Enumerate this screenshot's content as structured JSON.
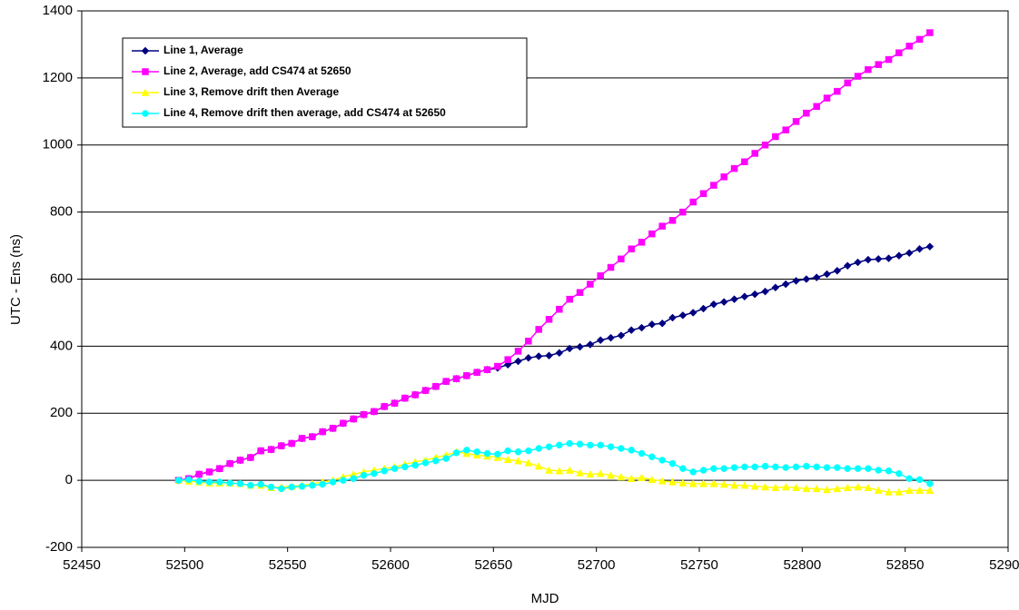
{
  "chart_data": {
    "type": "line",
    "x_label": "MJD",
    "y_label": "UTC - Ens (ns)",
    "xlim": [
      52450,
      52900
    ],
    "xticks": [
      52450,
      52500,
      52550,
      52600,
      52650,
      52700,
      52750,
      52800,
      52850,
      52900
    ],
    "ylim": [
      -200,
      1400
    ],
    "yticks": [
      -200,
      0,
      200,
      400,
      600,
      800,
      1000,
      1200,
      1400
    ],
    "grid": true,
    "legend": "upper left",
    "x": [
      52497,
      52502,
      52507,
      52512,
      52517,
      52522,
      52527,
      52532,
      52537,
      52542,
      52547,
      52552,
      52557,
      52562,
      52567,
      52572,
      52577,
      52582,
      52587,
      52592,
      52597,
      52602,
      52607,
      52612,
      52617,
      52622,
      52627,
      52632,
      52637,
      52642,
      52647,
      52652,
      52657,
      52662,
      52667,
      52672,
      52677,
      52682,
      52687,
      52692,
      52697,
      52702,
      52707,
      52712,
      52717,
      52722,
      52727,
      52732,
      52737,
      52742,
      52747,
      52752,
      52757,
      52762,
      52767,
      52772,
      52777,
      52782,
      52787,
      52792,
      52797,
      52802,
      52807,
      52812,
      52817,
      52822,
      52827,
      52832,
      52837,
      52842,
      52847,
      52852,
      52857,
      52862
    ],
    "series": [
      {
        "name": "Line 1, Average",
        "color": "#000080",
        "marker": "diamond",
        "values": [
          0,
          5,
          18,
          25,
          35,
          50,
          60,
          68,
          88,
          92,
          103,
          110,
          125,
          130,
          145,
          155,
          170,
          183,
          196,
          205,
          220,
          230,
          245,
          255,
          268,
          280,
          295,
          303,
          312,
          322,
          330,
          335,
          345,
          355,
          365,
          370,
          372,
          380,
          393,
          398,
          405,
          418,
          425,
          432,
          448,
          455,
          465,
          468,
          485,
          492,
          500,
          512,
          525,
          532,
          540,
          548,
          555,
          563,
          575,
          585,
          595,
          600,
          605,
          615,
          625,
          640,
          650,
          658,
          660,
          662,
          670,
          678,
          690,
          697
        ]
      },
      {
        "name": "Line 2, Average, add CS474 at 52650",
        "color": "#ff00ff",
        "marker": "square",
        "values": [
          0,
          5,
          18,
          25,
          35,
          50,
          60,
          68,
          88,
          92,
          103,
          110,
          125,
          130,
          145,
          155,
          170,
          183,
          196,
          205,
          220,
          230,
          245,
          255,
          268,
          280,
          295,
          303,
          312,
          322,
          330,
          340,
          360,
          385,
          415,
          450,
          480,
          510,
          540,
          560,
          585,
          610,
          635,
          660,
          690,
          710,
          735,
          758,
          775,
          800,
          830,
          855,
          880,
          905,
          930,
          950,
          975,
          1000,
          1025,
          1045,
          1070,
          1095,
          1115,
          1140,
          1160,
          1185,
          1205,
          1225,
          1240,
          1255,
          1275,
          1295,
          1315,
          1335
        ]
      },
      {
        "name": "Line 3, Remove drift then Average",
        "color": "#ffff00",
        "marker": "triangle",
        "values": [
          0,
          -3,
          -5,
          -8,
          -8,
          -8,
          -10,
          -15,
          -15,
          -22,
          -20,
          -18,
          -15,
          -10,
          -5,
          0,
          10,
          18,
          25,
          30,
          35,
          40,
          48,
          55,
          60,
          68,
          75,
          85,
          80,
          75,
          72,
          68,
          62,
          58,
          52,
          42,
          30,
          28,
          30,
          22,
          18,
          20,
          15,
          10,
          5,
          8,
          2,
          -2,
          -5,
          -8,
          -10,
          -10,
          -10,
          -12,
          -15,
          -15,
          -18,
          -20,
          -22,
          -20,
          -22,
          -25,
          -25,
          -28,
          -25,
          -22,
          -20,
          -22,
          -30,
          -35,
          -35,
          -30,
          -30,
          -30
        ]
      },
      {
        "name": "Line 4, Remove drift then average, add CS474 at 52650",
        "color": "#00ffff",
        "marker": "circle",
        "values": [
          0,
          2,
          -3,
          -5,
          -5,
          -8,
          -10,
          -15,
          -12,
          -20,
          -25,
          -20,
          -18,
          -15,
          -12,
          -5,
          0,
          5,
          15,
          20,
          28,
          35,
          40,
          45,
          52,
          58,
          65,
          82,
          90,
          85,
          80,
          78,
          88,
          85,
          88,
          95,
          100,
          105,
          110,
          108,
          105,
          105,
          100,
          95,
          90,
          80,
          70,
          60,
          50,
          35,
          25,
          30,
          35,
          35,
          38,
          40,
          40,
          42,
          40,
          38,
          40,
          42,
          40,
          38,
          38,
          35,
          35,
          35,
          30,
          28,
          20,
          5,
          2,
          -10
        ]
      }
    ]
  }
}
